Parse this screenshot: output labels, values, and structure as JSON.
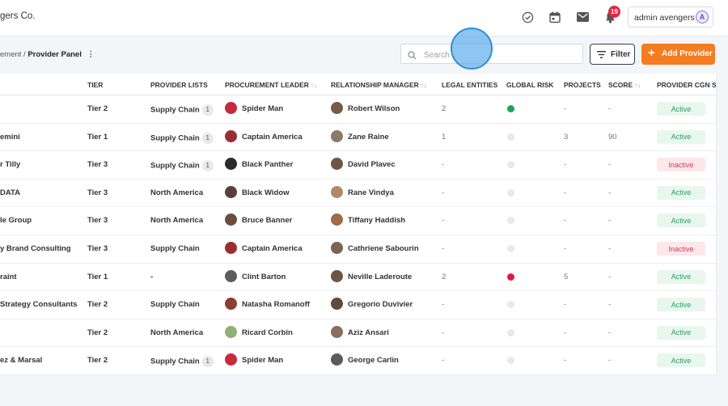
{
  "app": {
    "brand": "gers Co."
  },
  "header": {
    "notifications_count": "19",
    "user_name": "admin avengers",
    "user_initial": "A"
  },
  "breadcrumb": {
    "parent": "ement",
    "separator": "/",
    "current": "Provider Panel",
    "menu": "⋮"
  },
  "search": {
    "placeholder": "Search",
    "value": ""
  },
  "toolbar": {
    "filter_label": "Filter",
    "add_icon": "+",
    "add_label": "Add Provider"
  },
  "colors": {
    "accent": "#f57c1f",
    "risk_green": "#1aa65c",
    "risk_red": "#e01b3c",
    "risk_none": "#e6e8eb"
  },
  "table": {
    "columns": {
      "tier": "TIER",
      "provider_lists": "PROVIDER LISTS",
      "procurement_leader": "PROCUREMENT LEADER",
      "relationship_manager": "RELATIONSHIP MANAGER",
      "legal_entities": "LEGAL ENTITIES",
      "global_risk": "GLOBAL RISK",
      "projects": "PROJECTS",
      "score": "SCORE",
      "status": "PROVIDER CGN ST"
    },
    "sort_icon": "↑↓",
    "rows": [
      {
        "name": "",
        "tier": "Tier 2",
        "list": "Supply Chain",
        "list_count": "1",
        "leader": "Spider Man",
        "manager": "Robert Wilson",
        "legal": "2",
        "risk": "green",
        "projects": "-",
        "score": "-",
        "status": "Active"
      },
      {
        "name": "emini",
        "tier": "Tier 1",
        "list": "Supply Chain",
        "list_count": "1",
        "leader": "Captain America",
        "manager": "Zane Raine",
        "legal": "1",
        "risk": "none",
        "projects": "3",
        "score": "90",
        "status": "Active"
      },
      {
        "name": "r Tilly",
        "tier": "Tier 3",
        "list": "Supply Chain",
        "list_count": "1",
        "leader": "Black Panther",
        "manager": "David Plavec",
        "legal": "-",
        "risk": "none",
        "projects": "-",
        "score": "-",
        "status": "Inactive"
      },
      {
        "name": "DATA",
        "tier": "Tier 3",
        "list": "North America",
        "list_count": "",
        "leader": "Black Widow",
        "manager": "Rane Vindya",
        "legal": "-",
        "risk": "none",
        "projects": "-",
        "score": "-",
        "status": "Active"
      },
      {
        "name": "le Group",
        "tier": "Tier 3",
        "list": "North America",
        "list_count": "",
        "leader": "Bruce Banner",
        "manager": "Tiffany Haddish",
        "legal": "-",
        "risk": "none",
        "projects": "-",
        "score": "-",
        "status": "Active"
      },
      {
        "name": "y Brand Consulting",
        "tier": "Tier 3",
        "list": "Supply Chain",
        "list_count": "",
        "leader": "Captain America",
        "manager": "Cathriene Sabourin",
        "legal": "-",
        "risk": "none",
        "projects": "-",
        "score": "-",
        "status": "Inactive"
      },
      {
        "name": "raint",
        "tier": "Tier 1",
        "list": "-",
        "list_count": "",
        "leader": "Clint Barton",
        "manager": "Neville Laderoute",
        "legal": "2",
        "risk": "red",
        "projects": "5",
        "score": "-",
        "status": "Active"
      },
      {
        "name": "Strategy Consultants",
        "tier": "Tier 2",
        "list": "Supply Chain",
        "list_count": "",
        "leader": "Natasha Romanoff",
        "manager": "Gregorio Duvivier",
        "legal": "-",
        "risk": "none",
        "projects": "-",
        "score": "-",
        "status": "Active"
      },
      {
        "name": "",
        "tier": "Tier 2",
        "list": "North America",
        "list_count": "",
        "leader": "Ricard Corbin",
        "manager": "Aziz Ansari",
        "legal": "-",
        "risk": "none",
        "projects": "-",
        "score": "-",
        "status": "Active"
      },
      {
        "name": "ez & Marsal",
        "tier": "Tier 2",
        "list": "Supply Chain",
        "list_count": "1",
        "leader": "Spider Man",
        "manager": "George Carlin",
        "legal": "-",
        "risk": "none",
        "projects": "-",
        "score": "-",
        "status": "Active"
      }
    ]
  }
}
